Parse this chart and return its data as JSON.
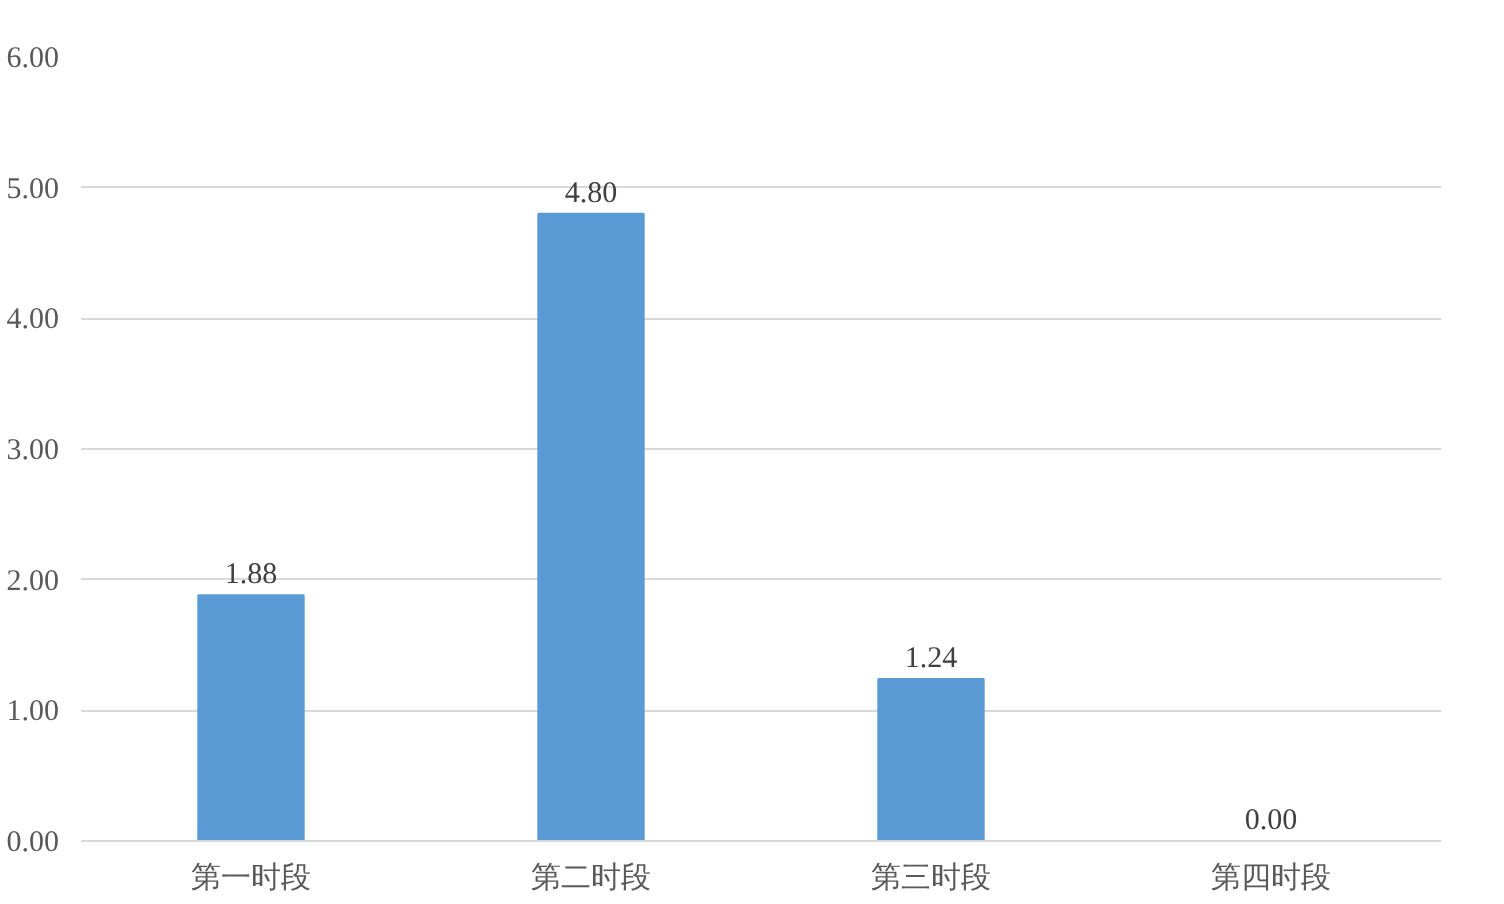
{
  "chart_data": {
    "type": "bar",
    "categories": [
      "第一时段",
      "第二时段",
      "第三时段",
      "第四时段"
    ],
    "values": [
      1.88,
      4.8,
      1.24,
      0.0
    ],
    "value_labels": [
      "1.88",
      "4.80",
      "1.24",
      "0.00"
    ],
    "color": "#5b9bd5",
    "ylim": [
      0,
      6
    ],
    "yticks": [
      {
        "value": 0,
        "label": "0.00"
      },
      {
        "value": 1,
        "label": "1.00"
      },
      {
        "value": 2,
        "label": "2.00"
      },
      {
        "value": 3,
        "label": "3.00"
      },
      {
        "value": 4,
        "label": "4.00"
      },
      {
        "value": 5,
        "label": "5.00"
      },
      {
        "value": 6,
        "label": "6.00"
      }
    ],
    "grid": "y"
  }
}
